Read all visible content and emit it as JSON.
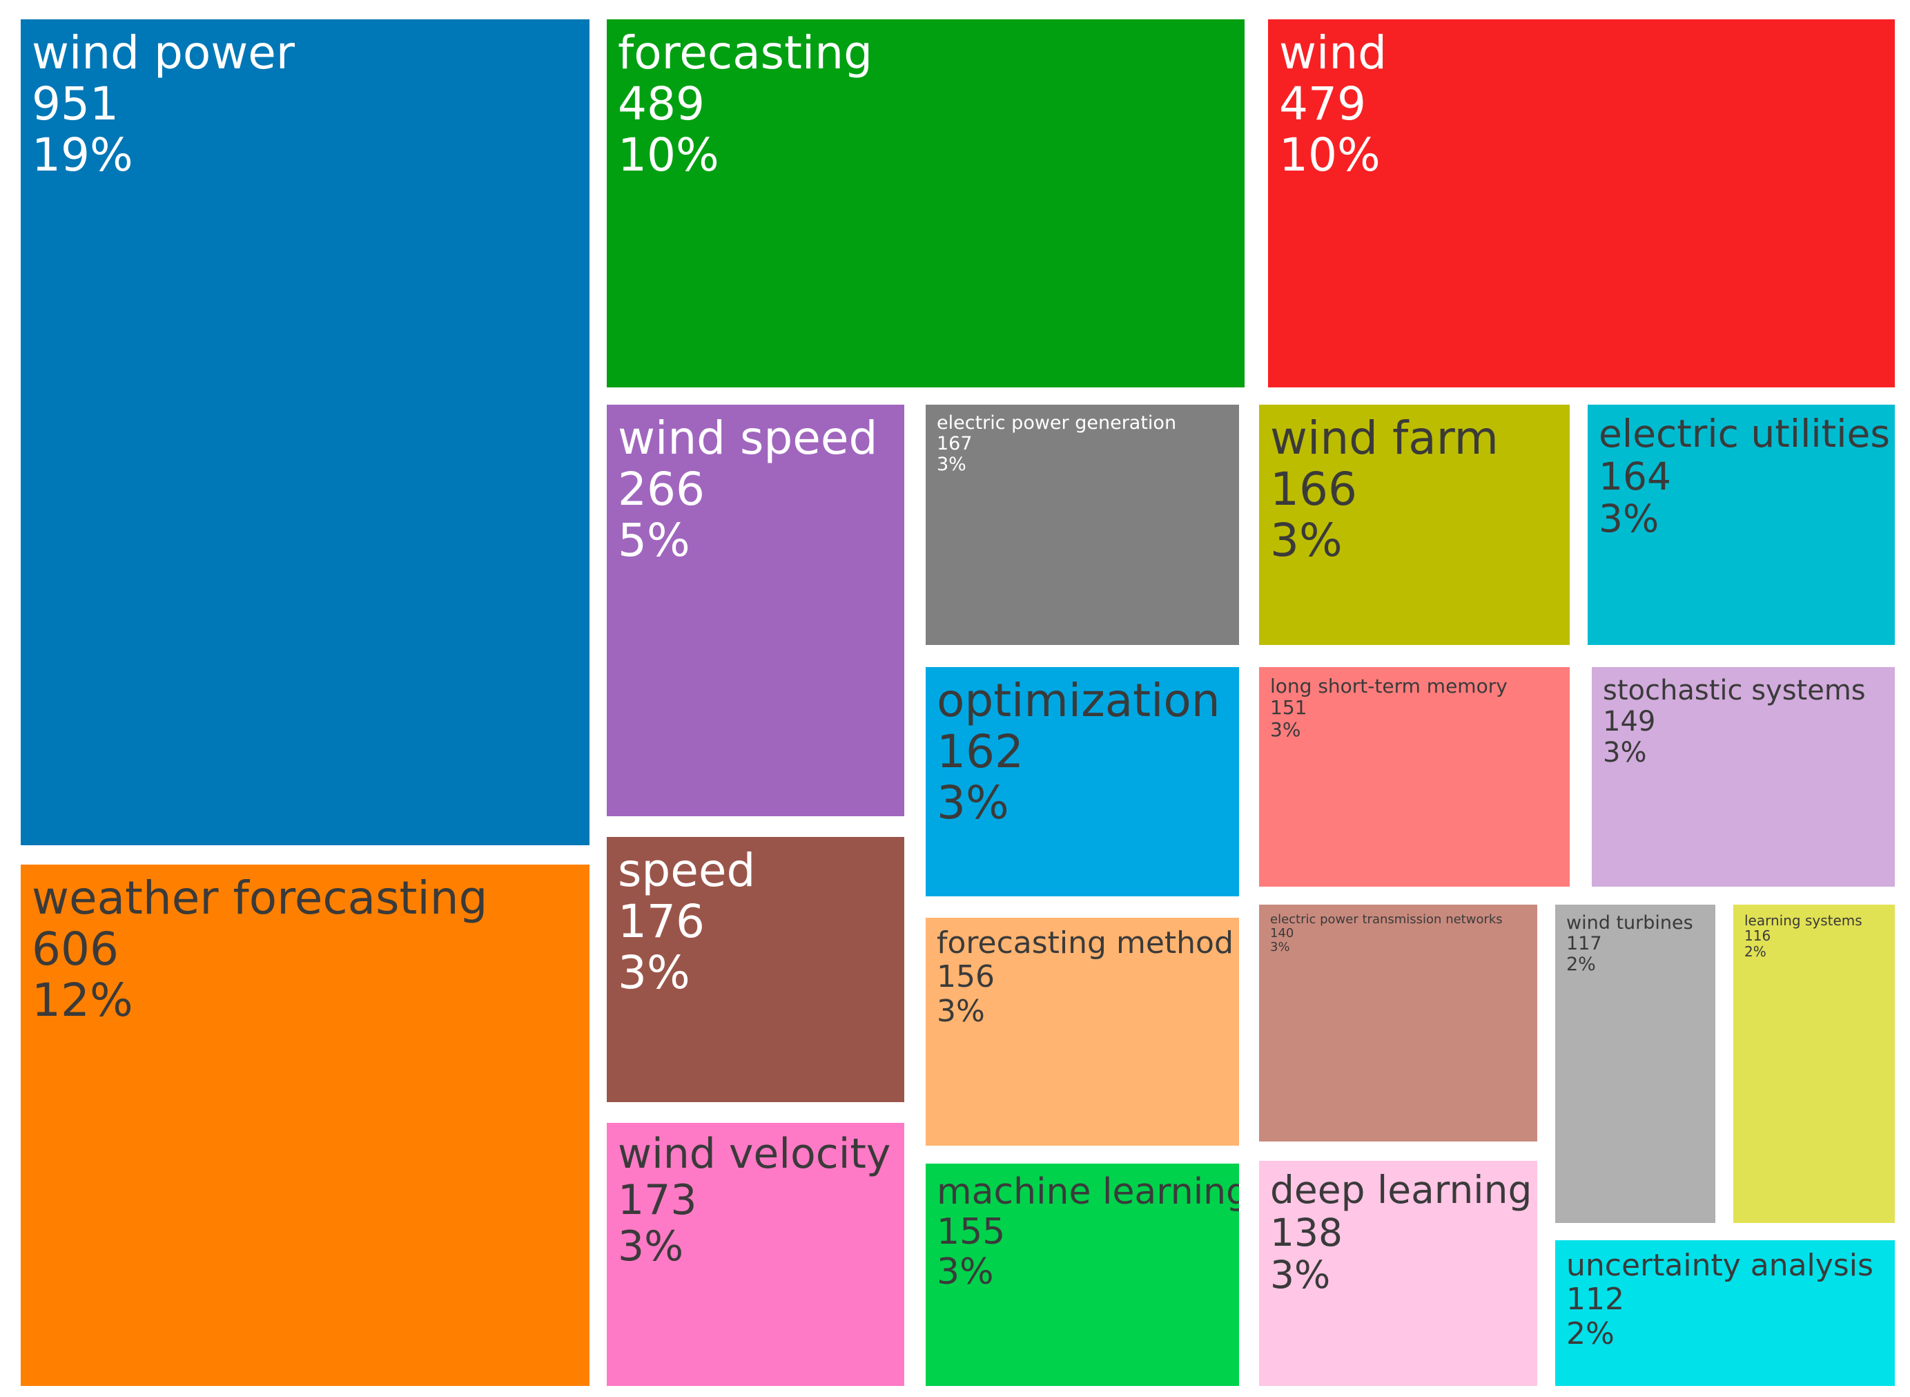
{
  "chart_data": {
    "type": "treemap",
    "items": [
      {
        "label": "wind power",
        "value": 951,
        "percent": "19%",
        "color": "#0077B6"
      },
      {
        "label": "weather forecasting",
        "value": 606,
        "percent": "12%",
        "color": "#FF8000"
      },
      {
        "label": "forecasting",
        "value": 489,
        "percent": "10%",
        "color": "#00A011"
      },
      {
        "label": "wind",
        "value": 479,
        "percent": "10%",
        "color": "#F72124"
      },
      {
        "label": "wind speed",
        "value": 266,
        "percent": "5%",
        "color": "#A066BE"
      },
      {
        "label": "speed",
        "value": 176,
        "percent": "3%",
        "color": "#9A554A"
      },
      {
        "label": "wind velocity",
        "value": 173,
        "percent": "3%",
        "color": "#FF7AC6"
      },
      {
        "label": "electric power generation",
        "value": 167,
        "percent": "3%",
        "color": "#808080"
      },
      {
        "label": "wind farm",
        "value": 166,
        "percent": "3%",
        "color": "#BDBD00"
      },
      {
        "label": "electric utilities",
        "value": 164,
        "percent": "3%",
        "color": "#00BCD1"
      },
      {
        "label": "optimization",
        "value": 162,
        "percent": "3%",
        "color": "#00A8E3"
      },
      {
        "label": "forecasting method",
        "value": 156,
        "percent": "3%",
        "color": "#FFB471"
      },
      {
        "label": "machine learning",
        "value": 155,
        "percent": "3%",
        "color": "#00D24C"
      },
      {
        "label": "long short-term memory",
        "value": 151,
        "percent": "3%",
        "color": "#FF7C7C"
      },
      {
        "label": "stochastic systems",
        "value": 149,
        "percent": "3%",
        "color": "#D2ACDC"
      },
      {
        "label": "electric power transmission networks",
        "value": 140,
        "percent": "3%",
        "color": "#C98A7E"
      },
      {
        "label": "deep learning",
        "value": 138,
        "percent": "3%",
        "color": "#FFC6E6"
      },
      {
        "label": "wind turbines",
        "value": 117,
        "percent": "2%",
        "color": "#B0B0B0"
      },
      {
        "label": "learning systems",
        "value": 116,
        "percent": "2%",
        "color": "#E1E154"
      },
      {
        "label": "uncertainty analysis",
        "value": 112,
        "percent": "2%",
        "color": "#00E1EA"
      }
    ]
  }
}
